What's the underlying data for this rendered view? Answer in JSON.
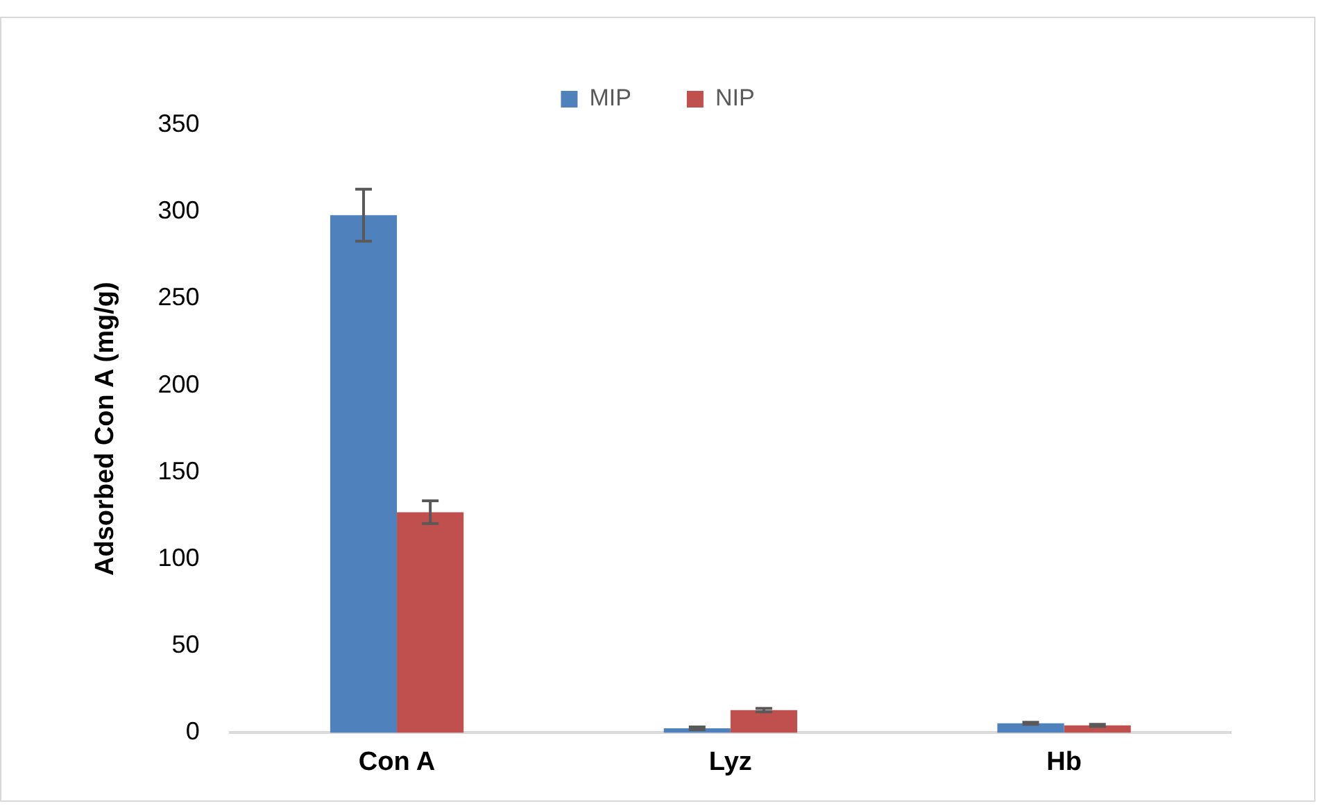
{
  "chart_data": {
    "type": "bar",
    "ylabel": "Adsorbed Con A (mg/g)",
    "categories": [
      "Con A",
      "Lyz",
      "Hb"
    ],
    "series": [
      {
        "name": "MIP",
        "color": "#4f81bd",
        "values": [
          298,
          2.6,
          5.5
        ],
        "errors": [
          15,
          0.8,
          0.6
        ]
      },
      {
        "name": "NIP",
        "color": "#c0504d",
        "values": [
          127,
          13,
          4.3
        ],
        "errors": [
          6.5,
          1,
          0.6
        ]
      }
    ],
    "ylim": [
      0,
      350
    ],
    "yticks": [
      0,
      50,
      100,
      150,
      200,
      250,
      300,
      350
    ],
    "grid": false,
    "legend": "top"
  }
}
